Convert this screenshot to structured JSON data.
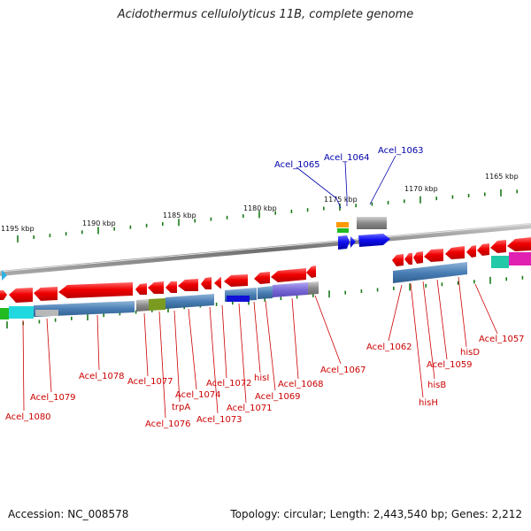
{
  "title": "Acidothermus cellulolyticus 11B, complete genome",
  "footer": {
    "accession": "Accession: NC_008578",
    "topology": "Topology: circular; Length: 2,443,540 bp; Genes: 2,212"
  },
  "scale": {
    "unit": "kbp",
    "ticks": [
      {
        "label": "1195 kbp"
      },
      {
        "label": "1190 kbp"
      },
      {
        "label": "1185 kbp"
      },
      {
        "label": "1180 kbp"
      },
      {
        "label": "1175 kbp"
      },
      {
        "label": "1170 kbp"
      },
      {
        "label": "1165 kbp"
      }
    ]
  },
  "gene_labels_red": [
    "Acel_1080",
    "Acel_1079",
    "Acel_1078",
    "Acel_1077",
    "Acel_1076",
    "trpA",
    "Acel_1074",
    "Acel_1073",
    "Acel_1072",
    "Acel_1071",
    "hisI",
    "Acel_1069",
    "Acel_1068",
    "Acel_1067",
    "Acel_1062",
    "hisH",
    "hisB",
    "Acel_1059",
    "hisD",
    "Acel_1057"
  ],
  "gene_labels_blue": [
    "Acel_1065",
    "Acel_1064",
    "Acel_1063"
  ],
  "colors": {
    "forward_cds": "#1a1ae6",
    "reverse_cds": "#e60000",
    "backbone": "#7a7a7a",
    "label_red": "#cc0000",
    "label_blue": "#0000aa",
    "tick_green": "#1a7a1a"
  }
}
